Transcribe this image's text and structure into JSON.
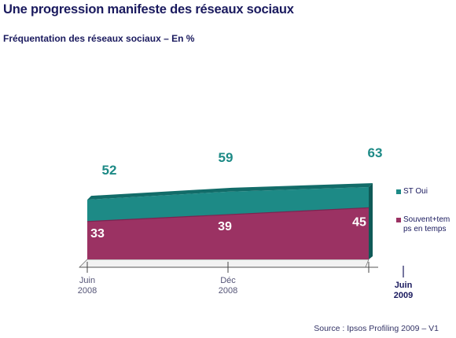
{
  "header": {
    "title": "Une progression manifeste des réseaux sociaux",
    "subtitle": "Fréquentation des réseaux sociaux – En %"
  },
  "chart_data": {
    "type": "area",
    "title": "Une progression manifeste des réseaux sociaux",
    "subtitle": "Fréquentation des réseaux sociaux – En %",
    "ylabel": "",
    "xlabel": "",
    "categories": [
      [
        "Juin",
        "2008"
      ],
      [
        "Déc",
        "2008"
      ],
      [
        "Juin",
        "2009"
      ]
    ],
    "series": [
      {
        "name": "Souvent+temps en temps",
        "legend_lines": [
          "Souvent+tem",
          "ps en temps"
        ],
        "values": [
          33,
          39,
          45
        ],
        "color": "#9b3263"
      },
      {
        "name": "ST Oui",
        "legend_lines": [
          "ST Oui"
        ],
        "values": [
          52,
          59,
          63
        ],
        "color": "#1d8a86"
      }
    ],
    "stack_mode": "overlay",
    "ylim": [
      0,
      70
    ],
    "grid": false,
    "legend_position": "right",
    "label_color": "#1d8a86",
    "inner_label_color": "#ffffff"
  },
  "footer": {
    "source": "Source : Ipsos Profiling 2009 – V1"
  }
}
